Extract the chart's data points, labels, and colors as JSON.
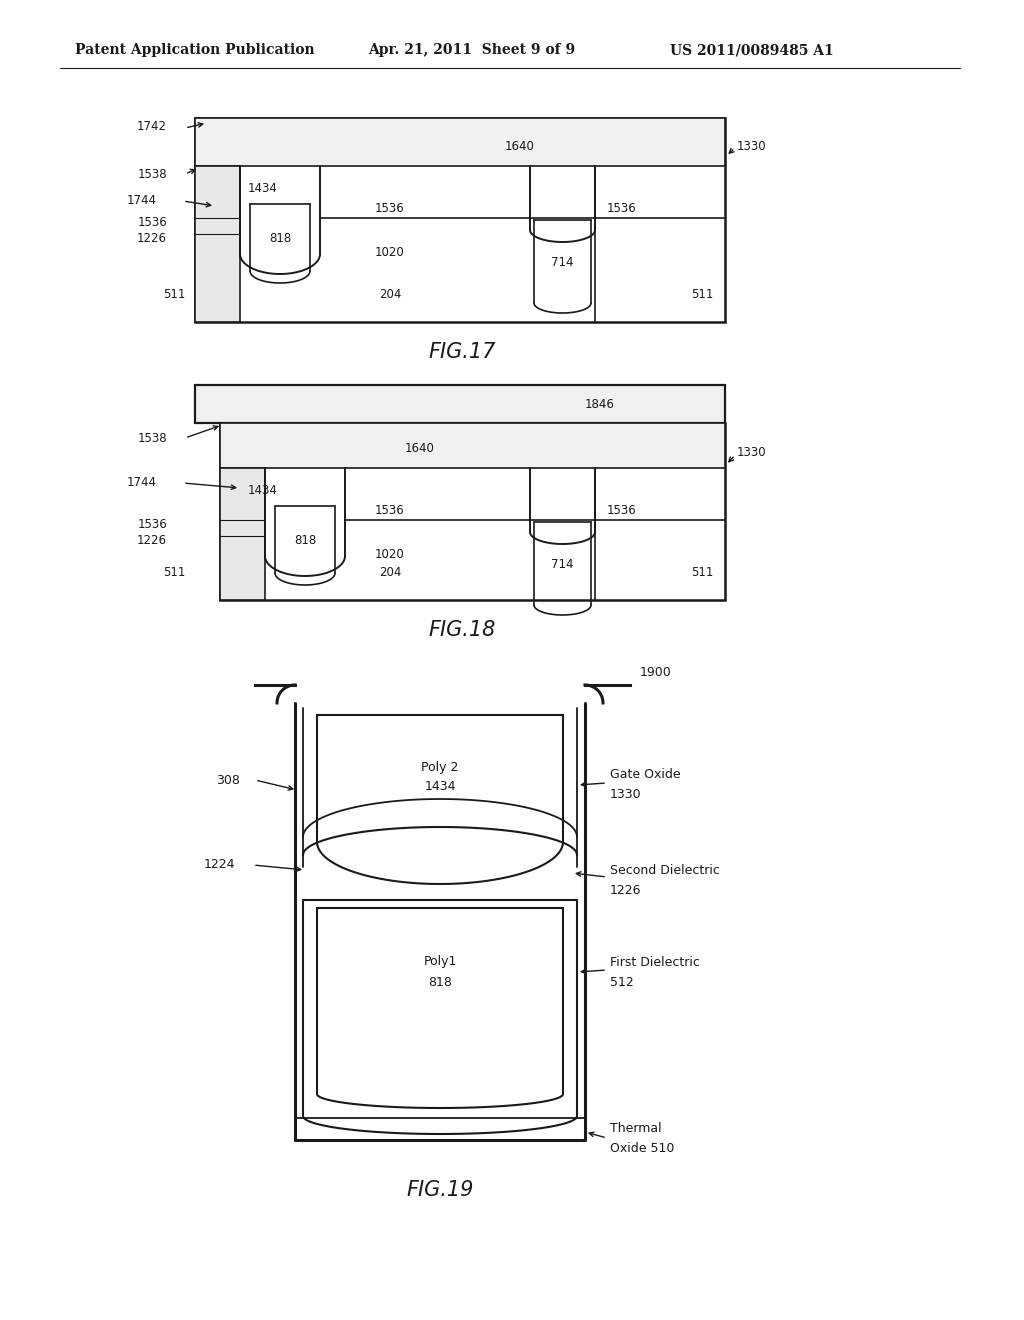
{
  "bg_color": "#ffffff",
  "line_color": "#1a1a1a",
  "header_left": "Patent Application Publication",
  "header_center": "Apr. 21, 2011  Sheet 9 of 9",
  "header_right": "US 2011/0089485 A1",
  "fig17_caption": "FIG.17",
  "fig18_caption": "FIG.18",
  "fig19_caption": "FIG.19"
}
